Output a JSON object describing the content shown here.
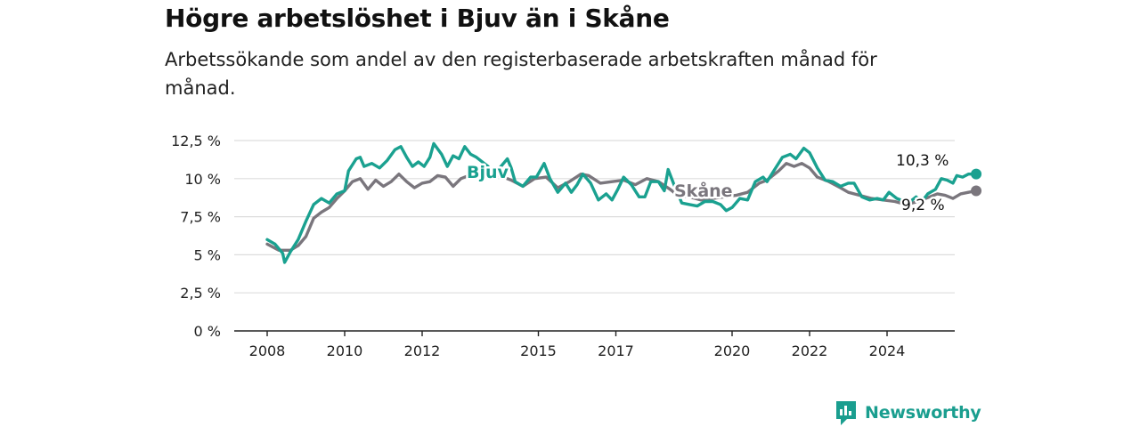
{
  "title": "Högre arbetslöshet i Bjuv än i Skåne",
  "subtitle": "Arbetssökande som andel av den registerbaserade arbetskraften månad för månad.",
  "brand": "Newsworthy",
  "colors": {
    "bjuv": "#1aa190",
    "skane": "#7a767d",
    "grid": "#dddddd",
    "axis": "#222222"
  },
  "chart_data": {
    "type": "line",
    "title": "Högre arbetslöshet i Bjuv än i Skåne",
    "subtitle": "Arbetssökande som andel av den registerbaserade arbetskraften månad för månad.",
    "xlabel": "",
    "ylabel": "",
    "ylim": [
      0,
      12.5
    ],
    "xlim": [
      2007.6,
      2025.75
    ],
    "grid": true,
    "legend": "inline labels",
    "y_ticks": [
      0,
      2.5,
      5,
      7.5,
      10,
      12.5
    ],
    "y_tick_labels": [
      "0 %",
      "2,5 %",
      "5 %",
      "7,5 %",
      "10 %",
      "12,5 %"
    ],
    "x_ticks": [
      2008,
      2010,
      2012,
      2015,
      2017,
      2020,
      2022,
      2024
    ],
    "x_tick_labels": [
      "2008",
      "2010",
      "2012",
      "2015",
      "2017",
      "2020",
      "2022",
      "2024"
    ],
    "series": [
      {
        "name": "Bjuv",
        "color": "#1aa190",
        "end_label": "10,3 %",
        "points": [
          [
            2008.0,
            6.0
          ],
          [
            2008.2,
            5.7
          ],
          [
            2008.4,
            5.1
          ],
          [
            2008.45,
            4.5
          ],
          [
            2008.6,
            5.2
          ],
          [
            2008.8,
            6.0
          ],
          [
            2009.0,
            7.2
          ],
          [
            2009.2,
            8.3
          ],
          [
            2009.4,
            8.7
          ],
          [
            2009.6,
            8.4
          ],
          [
            2009.8,
            9.0
          ],
          [
            2010.0,
            9.2
          ],
          [
            2010.1,
            10.5
          ],
          [
            2010.3,
            11.3
          ],
          [
            2010.4,
            11.4
          ],
          [
            2010.5,
            10.8
          ],
          [
            2010.7,
            11.0
          ],
          [
            2010.9,
            10.7
          ],
          [
            2011.1,
            11.2
          ],
          [
            2011.3,
            11.9
          ],
          [
            2011.45,
            12.1
          ],
          [
            2011.6,
            11.4
          ],
          [
            2011.75,
            10.8
          ],
          [
            2011.9,
            11.1
          ],
          [
            2012.05,
            10.8
          ],
          [
            2012.2,
            11.4
          ],
          [
            2012.3,
            12.3
          ],
          [
            2012.5,
            11.6
          ],
          [
            2012.65,
            10.8
          ],
          [
            2012.8,
            11.5
          ],
          [
            2012.95,
            11.3
          ],
          [
            2013.1,
            12.1
          ],
          [
            2013.25,
            11.6
          ],
          [
            2013.4,
            11.4
          ],
          [
            2013.7,
            10.8
          ],
          [
            2013.8,
            10.3
          ],
          [
            2014.0,
            10.7
          ],
          [
            2014.2,
            11.3
          ],
          [
            2014.3,
            10.7
          ],
          [
            2014.4,
            9.8
          ],
          [
            2014.6,
            9.5
          ],
          [
            2014.8,
            10.1
          ],
          [
            2014.95,
            10.1
          ],
          [
            2015.15,
            11.0
          ],
          [
            2015.3,
            10.0
          ],
          [
            2015.5,
            9.1
          ],
          [
            2015.7,
            9.7
          ],
          [
            2015.85,
            9.1
          ],
          [
            2016.0,
            9.6
          ],
          [
            2016.15,
            10.3
          ],
          [
            2016.35,
            9.7
          ],
          [
            2016.55,
            8.6
          ],
          [
            2016.75,
            9.0
          ],
          [
            2016.9,
            8.6
          ],
          [
            2017.05,
            9.3
          ],
          [
            2017.2,
            10.1
          ],
          [
            2017.4,
            9.6
          ],
          [
            2017.6,
            8.8
          ],
          [
            2017.75,
            8.8
          ],
          [
            2017.9,
            9.8
          ],
          [
            2018.1,
            9.8
          ],
          [
            2018.25,
            9.2
          ],
          [
            2018.35,
            10.6
          ],
          [
            2018.5,
            9.6
          ],
          [
            2018.7,
            8.4
          ],
          [
            2018.9,
            8.3
          ],
          [
            2019.1,
            8.2
          ],
          [
            2019.3,
            8.5
          ],
          [
            2019.5,
            8.5
          ],
          [
            2019.7,
            8.3
          ],
          [
            2019.85,
            7.9
          ],
          [
            2020.0,
            8.1
          ],
          [
            2020.2,
            8.7
          ],
          [
            2020.4,
            8.6
          ],
          [
            2020.6,
            9.8
          ],
          [
            2020.8,
            10.1
          ],
          [
            2020.9,
            9.8
          ],
          [
            2021.1,
            10.6
          ],
          [
            2021.3,
            11.4
          ],
          [
            2021.5,
            11.6
          ],
          [
            2021.65,
            11.3
          ],
          [
            2021.85,
            12.0
          ],
          [
            2022.0,
            11.7
          ],
          [
            2022.2,
            10.7
          ],
          [
            2022.4,
            9.9
          ],
          [
            2022.6,
            9.8
          ],
          [
            2022.8,
            9.5
          ],
          [
            2023.0,
            9.7
          ],
          [
            2023.15,
            9.7
          ],
          [
            2023.35,
            8.8
          ],
          [
            2023.55,
            8.6
          ],
          [
            2023.75,
            8.7
          ],
          [
            2023.9,
            8.6
          ],
          [
            2024.05,
            9.1
          ],
          [
            2024.25,
            8.7
          ],
          [
            2024.45,
            8.5
          ],
          [
            2024.6,
            8.5
          ],
          [
            2024.75,
            8.8
          ],
          [
            2024.9,
            8.5
          ],
          [
            2025.05,
            9.0
          ],
          [
            2025.25,
            9.3
          ],
          [
            2025.4,
            10.0
          ],
          [
            2025.55,
            9.9
          ],
          [
            2025.7,
            9.7
          ],
          [
            2025.8,
            10.2
          ],
          [
            2025.95,
            10.1
          ],
          [
            2026.1,
            10.3
          ],
          [
            2026.3,
            10.3
          ]
        ]
      },
      {
        "name": "Skåne",
        "color": "#7a767d",
        "end_label": "9,2 %",
        "points": [
          [
            2008.0,
            5.7
          ],
          [
            2008.3,
            5.3
          ],
          [
            2008.6,
            5.3
          ],
          [
            2008.8,
            5.6
          ],
          [
            2009.0,
            6.2
          ],
          [
            2009.2,
            7.4
          ],
          [
            2009.4,
            7.8
          ],
          [
            2009.6,
            8.1
          ],
          [
            2009.8,
            8.7
          ],
          [
            2010.0,
            9.2
          ],
          [
            2010.2,
            9.8
          ],
          [
            2010.4,
            10.0
          ],
          [
            2010.6,
            9.3
          ],
          [
            2010.8,
            9.9
          ],
          [
            2011.0,
            9.5
          ],
          [
            2011.2,
            9.8
          ],
          [
            2011.4,
            10.3
          ],
          [
            2011.6,
            9.8
          ],
          [
            2011.8,
            9.4
          ],
          [
            2012.0,
            9.7
          ],
          [
            2012.2,
            9.8
          ],
          [
            2012.4,
            10.2
          ],
          [
            2012.6,
            10.1
          ],
          [
            2012.8,
            9.5
          ],
          [
            2013.0,
            10.0
          ],
          [
            2013.3,
            10.3
          ],
          [
            2013.5,
            10.5
          ],
          [
            2013.8,
            10.4
          ],
          [
            2014.0,
            10.2
          ],
          [
            2014.3,
            9.9
          ],
          [
            2014.6,
            9.5
          ],
          [
            2014.9,
            10.0
          ],
          [
            2015.2,
            10.1
          ],
          [
            2015.5,
            9.4
          ],
          [
            2015.8,
            9.8
          ],
          [
            2016.1,
            10.3
          ],
          [
            2016.3,
            10.2
          ],
          [
            2016.6,
            9.7
          ],
          [
            2016.9,
            9.8
          ],
          [
            2017.2,
            9.9
          ],
          [
            2017.5,
            9.6
          ],
          [
            2017.8,
            10.0
          ],
          [
            2018.1,
            9.8
          ],
          [
            2018.4,
            9.3
          ],
          [
            2018.6,
            8.9
          ],
          [
            2018.9,
            8.8
          ],
          [
            2019.2,
            8.6
          ],
          [
            2019.5,
            8.7
          ],
          [
            2019.8,
            8.8
          ],
          [
            2020.1,
            8.9
          ],
          [
            2020.4,
            9.1
          ],
          [
            2020.7,
            9.7
          ],
          [
            2020.9,
            9.9
          ],
          [
            2021.2,
            10.5
          ],
          [
            2021.4,
            11.0
          ],
          [
            2021.6,
            10.8
          ],
          [
            2021.8,
            11.0
          ],
          [
            2022.0,
            10.7
          ],
          [
            2022.2,
            10.1
          ],
          [
            2022.5,
            9.8
          ],
          [
            2022.8,
            9.4
          ],
          [
            2023.0,
            9.1
          ],
          [
            2023.3,
            8.9
          ],
          [
            2023.6,
            8.7
          ],
          [
            2023.9,
            8.6
          ],
          [
            2024.2,
            8.5
          ],
          [
            2024.5,
            8.3
          ],
          [
            2024.8,
            8.5
          ],
          [
            2025.1,
            8.8
          ],
          [
            2025.3,
            9.0
          ],
          [
            2025.5,
            8.9
          ],
          [
            2025.7,
            8.7
          ],
          [
            2025.9,
            9.0
          ],
          [
            2026.1,
            9.1
          ],
          [
            2026.3,
            9.2
          ]
        ]
      }
    ]
  }
}
